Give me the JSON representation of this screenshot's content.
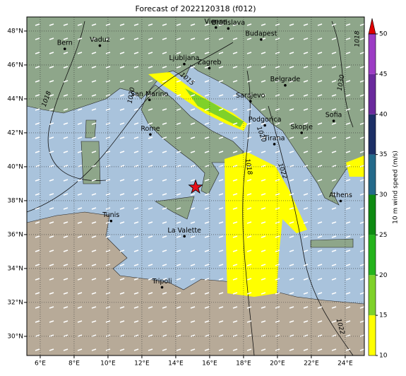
{
  "chart_data": {
    "type": "map",
    "title": "Forecast of 2022120318 (f012)",
    "xlim": [
      5.21,
      25.13
    ],
    "ylim": [
      28.87,
      48.83
    ],
    "xticks": [
      {
        "value": 6,
        "label": "6°E"
      },
      {
        "value": 8,
        "label": "8°E"
      },
      {
        "value": 10,
        "label": "10°E"
      },
      {
        "value": 12,
        "label": "12°E"
      },
      {
        "value": 14,
        "label": "14°E"
      },
      {
        "value": 16,
        "label": "16°E"
      },
      {
        "value": 18,
        "label": "18°E"
      },
      {
        "value": 20,
        "label": "20°E"
      },
      {
        "value": 22,
        "label": "22°E"
      },
      {
        "value": 24,
        "label": "24°E"
      }
    ],
    "yticks": [
      {
        "value": 30,
        "label": "30°N"
      },
      {
        "value": 32,
        "label": "32°N"
      },
      {
        "value": 34,
        "label": "34°N"
      },
      {
        "value": 36,
        "label": "36°N"
      },
      {
        "value": 38,
        "label": "38°N"
      },
      {
        "value": 40,
        "label": "40°N"
      },
      {
        "value": 42,
        "label": "42°N"
      },
      {
        "value": 44,
        "label": "44°N"
      },
      {
        "value": 46,
        "label": "46°N"
      },
      {
        "value": 48,
        "label": "48°N"
      }
    ],
    "grid": true,
    "cities": [
      {
        "name": "Bern",
        "lon": 7.45,
        "lat": 46.95
      },
      {
        "name": "Vaduz",
        "lon": 9.52,
        "lat": 47.14
      },
      {
        "name": "Vienna",
        "lon": 16.37,
        "lat": 48.21
      },
      {
        "name": "Bratislava",
        "lon": 17.1,
        "lat": 48.15
      },
      {
        "name": "Budapest",
        "lon": 19.04,
        "lat": 47.5
      },
      {
        "name": "Ljubljana",
        "lon": 14.5,
        "lat": 46.05
      },
      {
        "name": "Zagreb",
        "lon": 15.98,
        "lat": 45.81
      },
      {
        "name": "Belgrade",
        "lon": 20.46,
        "lat": 44.8
      },
      {
        "name": "San Marino",
        "lon": 12.45,
        "lat": 43.94
      },
      {
        "name": "Sarajevo",
        "lon": 18.41,
        "lat": 43.86
      },
      {
        "name": "Rome",
        "lon": 12.5,
        "lat": 41.9
      },
      {
        "name": "Podgorica",
        "lon": 19.26,
        "lat": 42.44
      },
      {
        "name": "Tirana",
        "lon": 19.82,
        "lat": 41.33
      },
      {
        "name": "Skopje",
        "lon": 21.43,
        "lat": 42.0
      },
      {
        "name": "Sofia",
        "lon": 23.32,
        "lat": 42.7
      },
      {
        "name": "Athens",
        "lon": 23.73,
        "lat": 37.98
      },
      {
        "name": "Tunis",
        "lon": 10.18,
        "lat": 36.8
      },
      {
        "name": "La Valette",
        "lon": 14.51,
        "lat": 35.9
      },
      {
        "name": "Tripoli",
        "lon": 13.19,
        "lat": 32.89
      }
    ],
    "marker": {
      "lon": 15.17,
      "lat": 38.79,
      "color": "#e8101a"
    },
    "isobar_labels": [
      "1015",
      "1020",
      "1018",
      "1022",
      "1030",
      "1018",
      "1020",
      "1022",
      "1018"
    ],
    "colorbar": {
      "label": "10 m wind speed (m/s)",
      "lim": [
        10,
        50
      ],
      "ticks": [
        10,
        15,
        20,
        25,
        30,
        35,
        40,
        45,
        50
      ],
      "colors": [
        "#ffff00",
        "#7fd12a",
        "#25b31c",
        "#0e8a12",
        "#246a8a",
        "#1c2f66",
        "#6a2a9c",
        "#9c3cc4"
      ],
      "extend_color": "#e00000"
    }
  }
}
